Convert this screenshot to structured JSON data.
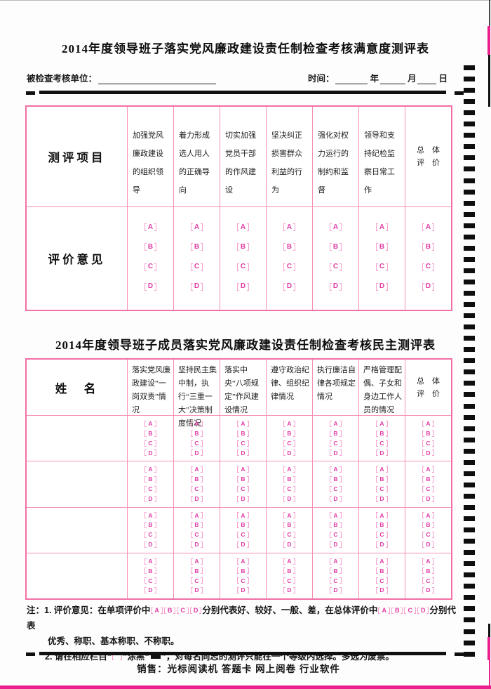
{
  "colors": {
    "border_pink": "#f78fb8",
    "border_pink_strong": "#f36fa5",
    "option_letter": "#e03ba5",
    "option_bracket": "#f9a0cf",
    "magenta": "#ec1f8e"
  },
  "header": {
    "title1": "2014年度领导班子落实党风廉政建设责任制检查考核满意度测评表",
    "unit_label": "被检查考核单位：",
    "time_label": "时间：",
    "year_label": "年",
    "month_label": "月",
    "day_label": "日"
  },
  "table1": {
    "row_header": "测评项目",
    "opinion_label": "评价意见",
    "criteria": [
      "加强党风廉政建设的组织领导",
      "着力形成选人用人的正确导向",
      "切实加强党员干部的作风建设",
      "坚决纠正损害群众利益的行为",
      "强化对权力运行的制约和监督",
      "领导和支持纪检监察日常工作"
    ],
    "overall_line1": "总　体",
    "overall_line2": "评　价",
    "options": [
      "A",
      "B",
      "C",
      "D"
    ]
  },
  "title2": "2014年度领导班子成员落实党风廉政建设责任制检查考核民主测评表",
  "table2": {
    "name_header": "姓　名",
    "criteria": [
      "落实党风廉政建设“一岗双责”情况",
      "坚持民主集中制，执行“三重一大”决策制度情况",
      "落实中央“八项规定”作风建设情况",
      "遵守政治纪律、组织纪律情况",
      "执行廉洁自律各项规定情况",
      "严格管理配偶、子女和身边工作人员的情况"
    ],
    "overall_line1": "总　体",
    "overall_line2": "评　价",
    "data_rows": 4,
    "options": [
      "A",
      "B",
      "C",
      "D"
    ]
  },
  "notes": {
    "prefix": "注：",
    "line1_part1": "1. 评价意见：在单项评价中",
    "line1_part2": "分别代表好、较好、一般、差，在总体评价中",
    "line1_part3": "分别代表",
    "line2": "优秀、称职、基本称职、不称职。",
    "line3_part1": "2. 请在相应栏目“",
    "line3_part2": "”涂黑“",
    "line3_part3": "”，对每名同志的测评只能在一个等级内选择。多选为废票。",
    "options": [
      "A",
      "B",
      "C",
      "D"
    ]
  },
  "footer": {
    "sales_line": "销售：光标阅读机  答题卡  网上阅卷  行业软件"
  },
  "omr": {
    "timing_marks_count": 53
  }
}
